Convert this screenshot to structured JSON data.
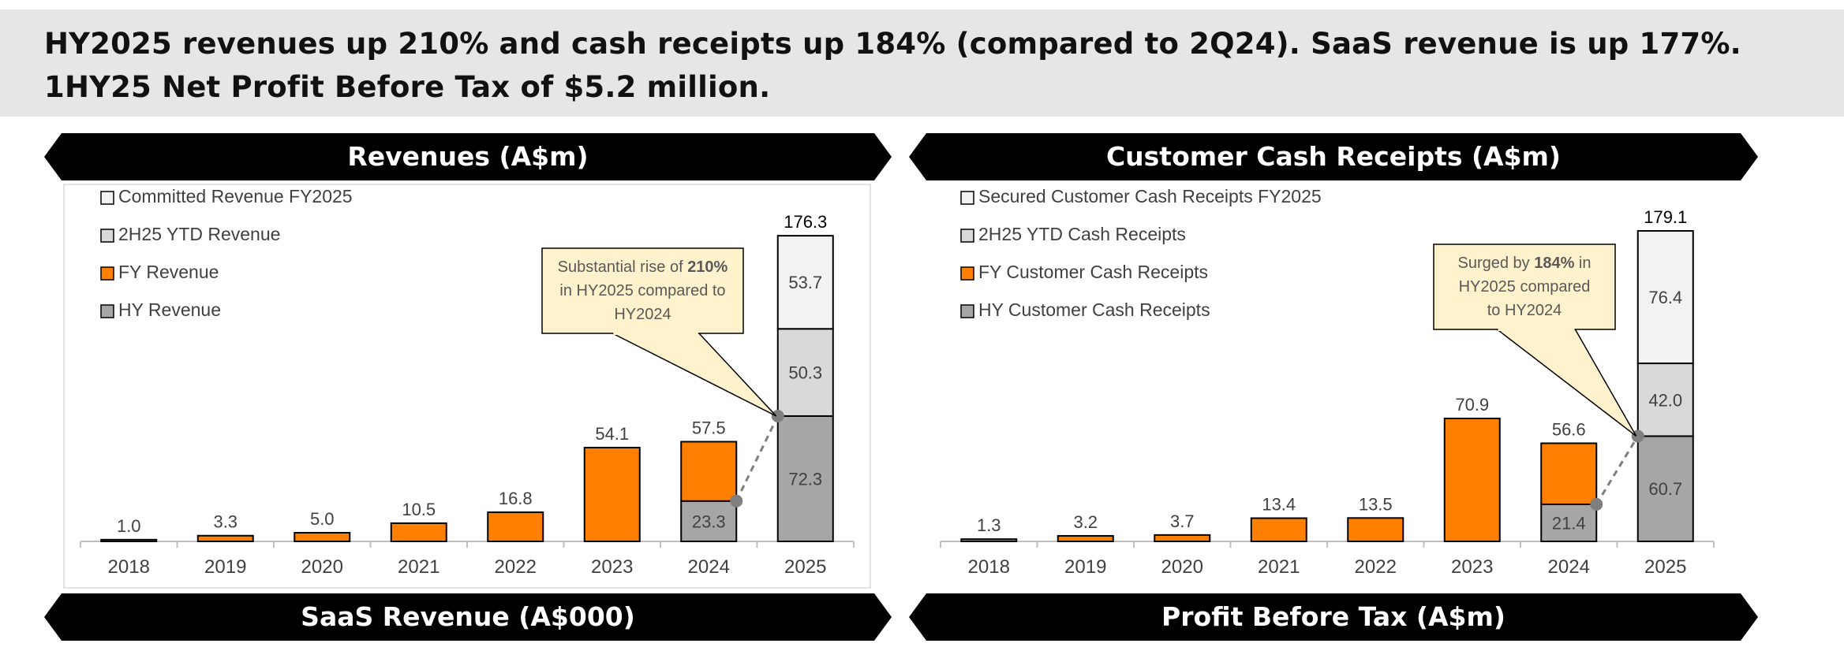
{
  "headline": {
    "line1": "HY2025 revenues up 210% and cash receipts up 184% (compared to 2Q24). SaaS revenue is up 177%.",
    "line2": "1HY25 Net Profit Before Tax of $5.2 million."
  },
  "banners": {
    "revenues": "Revenues (A$m)",
    "cash": "Customer Cash Receipts (A$m)",
    "saas": "SaaS Revenue (A$000)",
    "profit": "Profit Before Tax (A$m)"
  },
  "colors": {
    "orange": "#ff7f00",
    "gray": "#a6a6a6",
    "light": "#d9d9d9",
    "white": "#f2f2f2",
    "callout": "#fff2cc",
    "banner": "#000000",
    "header_bg": "#e6e6e6"
  },
  "chart_data": [
    {
      "type": "bar",
      "stacked": true,
      "title": "Revenues (A$m)",
      "categories": [
        "2018",
        "2019",
        "2020",
        "2021",
        "2022",
        "2023",
        "2024",
        "2025"
      ],
      "legend": [
        "Committed Revenue FY2025",
        "2H25 YTD Revenue",
        "FY Revenue",
        "HY Revenue"
      ],
      "series": [
        {
          "name": "HY Revenue",
          "values": [
            null,
            null,
            null,
            null,
            null,
            null,
            23.3,
            72.3
          ]
        },
        {
          "name": "FY Revenue",
          "values": [
            1.0,
            3.3,
            5.0,
            10.5,
            16.8,
            54.1,
            34.2,
            null
          ]
        },
        {
          "name": "2H25 YTD Revenue",
          "values": [
            null,
            null,
            null,
            null,
            null,
            null,
            null,
            50.3
          ]
        },
        {
          "name": "Committed Revenue FY2025",
          "values": [
            null,
            null,
            null,
            null,
            null,
            null,
            null,
            53.7
          ]
        }
      ],
      "totals": [
        "1.0",
        "3.3",
        "5.0",
        "10.5",
        "16.8",
        "54.1",
        "57.5",
        "176.3"
      ],
      "segment_labels": {
        "6": {
          "HY Revenue": "23.3"
        },
        "7": {
          "HY Revenue": "72.3",
          "2H25 YTD Revenue": "50.3",
          "Committed Revenue FY2025": "53.7"
        }
      },
      "callout": {
        "before": "Substantial rise of ",
        "bold": "210%",
        "after": "in HY2025 compared to",
        "last": "HY2024"
      },
      "ylim": [
        0,
        185
      ]
    },
    {
      "type": "bar",
      "stacked": true,
      "title": "Customer Cash Receipts (A$m)",
      "categories": [
        "2018",
        "2019",
        "2020",
        "2021",
        "2022",
        "2023",
        "2024",
        "2025"
      ],
      "legend": [
        "Secured Customer Cash Receipts FY2025",
        "2H25 YTD Cash Receipts",
        "FY Customer Cash Receipts",
        "HY Customer Cash Receipts"
      ],
      "series": [
        {
          "name": "HY Customer Cash Receipts",
          "values": [
            null,
            null,
            null,
            null,
            null,
            null,
            21.4,
            60.7
          ]
        },
        {
          "name": "FY Customer Cash Receipts",
          "values": [
            1.3,
            3.2,
            3.7,
            13.4,
            13.5,
            70.9,
            35.2,
            null
          ]
        },
        {
          "name": "2H25 YTD Cash Receipts",
          "values": [
            null,
            null,
            null,
            null,
            null,
            null,
            null,
            42.0
          ]
        },
        {
          "name": "Secured Customer Cash Receipts FY2025",
          "values": [
            null,
            null,
            null,
            null,
            null,
            null,
            null,
            76.4
          ]
        }
      ],
      "totals": [
        "1.3",
        "3.2",
        "3.7",
        "13.4",
        "13.5",
        "70.9",
        "56.6",
        "179.1"
      ],
      "segment_labels": {
        "6": {
          "HY Customer Cash Receipts": "21.4"
        },
        "7": {
          "HY Customer Cash Receipts": "60.7",
          "2H25 YTD Cash Receipts": "42.0",
          "Secured Customer Cash Receipts FY2025": "76.4"
        }
      },
      "callout": {
        "before": "Surged by ",
        "bold": "184%",
        "after": " in",
        "line2": "HY2025 compared",
        "last": "to HY2024"
      },
      "ylim": [
        0,
        185
      ]
    }
  ]
}
